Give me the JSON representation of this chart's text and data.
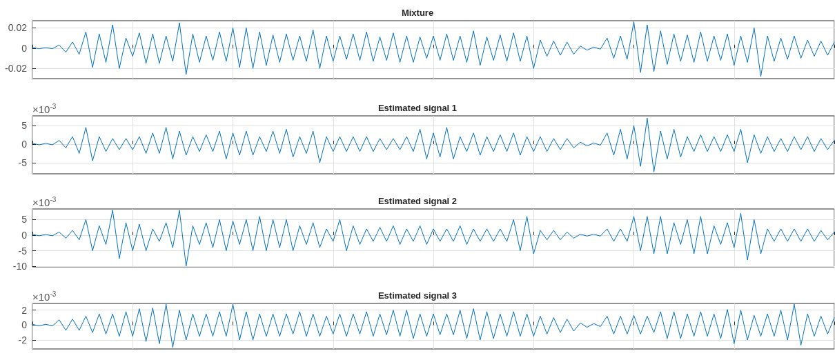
{
  "chart_data": [
    {
      "type": "line",
      "title": "Mixture",
      "categories": [
        null,
        null,
        null,
        null,
        null,
        null,
        null,
        null,
        null,
        null,
        null,
        null,
        null,
        null,
        null,
        null,
        null,
        null,
        null,
        null,
        null,
        null,
        null,
        null,
        null,
        null,
        null,
        null,
        null,
        null,
        null,
        null,
        null,
        null,
        null,
        null,
        null,
        null,
        null,
        null,
        null,
        null,
        null,
        null,
        null,
        null,
        null,
        null,
        null,
        null,
        null,
        null,
        null,
        null,
        null,
        null,
        null,
        null,
        null,
        null,
        null,
        null,
        null,
        null,
        null,
        null,
        null,
        null,
        null,
        null,
        null,
        null,
        null,
        null,
        null,
        null,
        null,
        null,
        null,
        null,
        null,
        null,
        null,
        null,
        null,
        null,
        null,
        null,
        null,
        null,
        null,
        null,
        null,
        null,
        null,
        null,
        null,
        null,
        null,
        null,
        null,
        null,
        null,
        null,
        null,
        null,
        null,
        null,
        null,
        null,
        null,
        null,
        null,
        null,
        null,
        null,
        null,
        null,
        null,
        null,
        null
      ],
      "series": [
        {
          "color": "#0072bd",
          "values": [
            0.0005,
            -0.0005,
            0.0005,
            -0.0005,
            0.003,
            -0.004,
            0.006,
            -0.006,
            0.016,
            -0.019,
            0.014,
            -0.014,
            0.023,
            -0.02,
            0.01,
            -0.008,
            0.015,
            -0.015,
            0.014,
            -0.015,
            0.012,
            -0.013,
            0.025,
            -0.026,
            0.014,
            -0.014,
            0.012,
            -0.012,
            0.016,
            -0.013,
            0.02,
            -0.019,
            0.02,
            -0.02,
            0.016,
            -0.017,
            0.013,
            -0.014,
            0.014,
            -0.012,
            0.012,
            -0.013,
            0.018,
            -0.02,
            0.012,
            -0.013,
            0.012,
            -0.011,
            0.014,
            -0.012,
            0.016,
            -0.013,
            0.011,
            -0.012,
            0.015,
            -0.014,
            0.012,
            -0.014,
            0.011,
            -0.01,
            0.012,
            -0.012,
            0.014,
            -0.012,
            0.012,
            -0.014,
            0.017,
            -0.017,
            0.011,
            -0.012,
            0.013,
            -0.013,
            0.015,
            -0.013,
            0.012,
            -0.02,
            0.008,
            -0.008,
            0.007,
            -0.007,
            0.006,
            -0.006,
            0.002,
            -0.002,
            0.001,
            -0.001,
            0.01,
            -0.01,
            0.012,
            -0.011,
            0.026,
            -0.024,
            0.023,
            -0.023,
            0.017,
            -0.016,
            0.014,
            -0.013,
            0.013,
            -0.014,
            0.016,
            -0.013,
            0.012,
            -0.012,
            0.014,
            -0.017,
            0.012,
            -0.014,
            0.02,
            -0.028,
            0.012,
            -0.013,
            0.01,
            -0.011,
            0.012,
            -0.01,
            0.008,
            -0.008,
            0.007,
            -0.007,
            0.006
          ]
        }
      ],
      "ylim": [
        -0.03,
        0.027
      ],
      "yticks": [
        -0.02,
        0,
        0.02
      ],
      "grid": true,
      "tick_labels": "y"
    },
    {
      "type": "line",
      "title": "Estimated signal 1",
      "annotations": [
        "×10$^{-3}$"
      ],
      "categories": [
        null,
        null,
        null,
        null,
        null,
        null,
        null,
        null,
        null,
        null,
        null,
        null,
        null,
        null,
        null,
        null,
        null,
        null,
        null,
        null,
        null,
        null,
        null,
        null,
        null,
        null,
        null,
        null,
        null,
        null,
        null,
        null,
        null,
        null,
        null,
        null,
        null,
        null,
        null,
        null,
        null,
        null,
        null,
        null,
        null,
        null,
        null,
        null,
        null,
        null,
        null,
        null,
        null,
        null,
        null,
        null,
        null,
        null,
        null,
        null,
        null,
        null,
        null,
        null,
        null,
        null,
        null,
        null,
        null,
        null,
        null,
        null,
        null,
        null,
        null,
        null,
        null,
        null,
        null,
        null,
        null,
        null,
        null,
        null,
        null,
        null,
        null,
        null,
        null,
        null,
        null,
        null,
        null,
        null,
        null,
        null,
        null,
        null,
        null,
        null,
        null,
        null,
        null,
        null,
        null,
        null,
        null,
        null,
        null,
        null,
        null,
        null,
        null,
        null,
        null,
        null,
        null,
        null,
        null,
        null,
        null
      ],
      "series": [
        {
          "color": "#0072bd",
          "values": [
            0.2,
            -0.2,
            0.2,
            -0.2,
            1,
            -1,
            2,
            -2.5,
            4.5,
            -4.5,
            2,
            -2,
            1.5,
            -1.5,
            1.5,
            -1.5,
            2,
            -2.5,
            3,
            -2.5,
            4.5,
            -4,
            3.5,
            -3,
            2,
            -2,
            2.5,
            -2,
            3.5,
            -4,
            3,
            -3,
            3.5,
            -3,
            2,
            -2,
            3.5,
            -2.5,
            4,
            -3.5,
            2,
            -2.5,
            3.5,
            -5,
            2,
            -2,
            2,
            -2,
            2,
            -2,
            2,
            -2,
            1.5,
            -1.5,
            1.5,
            -1.5,
            2,
            -2,
            4,
            -4,
            3,
            -3.5,
            4.5,
            -4,
            2,
            -2,
            3,
            -3,
            2,
            -2,
            2.5,
            -2,
            3,
            -3,
            2,
            -2,
            2,
            -2,
            1.5,
            -1.5,
            1.5,
            -1,
            0.5,
            -0.5,
            0.3,
            -0.3,
            3,
            -3,
            4,
            -4,
            5,
            -6,
            7,
            -7.5,
            3.5,
            -4,
            4,
            -3.5,
            2,
            -2,
            2.5,
            -2,
            2,
            -2,
            2.5,
            -2,
            4,
            -5,
            2.5,
            -2.5,
            2,
            -2,
            1.5,
            -2,
            2,
            -1.5,
            2,
            -2,
            1.5,
            -1.5,
            1
          ]
        }
      ],
      "ylim": [
        -8,
        7.6
      ],
      "yticks": [
        -5,
        0,
        5
      ],
      "grid": true,
      "tick_labels": "y"
    },
    {
      "type": "line",
      "title": "Estimated signal 2",
      "annotations": [
        "×10$^{-3}$"
      ],
      "categories": [
        null,
        null,
        null,
        null,
        null,
        null,
        null,
        null,
        null,
        null,
        null,
        null,
        null,
        null,
        null,
        null,
        null,
        null,
        null,
        null,
        null,
        null,
        null,
        null,
        null,
        null,
        null,
        null,
        null,
        null,
        null,
        null,
        null,
        null,
        null,
        null,
        null,
        null,
        null,
        null,
        null,
        null,
        null,
        null,
        null,
        null,
        null,
        null,
        null,
        null,
        null,
        null,
        null,
        null,
        null,
        null,
        null,
        null,
        null,
        null,
        null,
        null,
        null,
        null,
        null,
        null,
        null,
        null,
        null,
        null,
        null,
        null,
        null,
        null,
        null,
        null,
        null,
        null,
        null,
        null,
        null,
        null,
        null,
        null,
        null,
        null,
        null,
        null,
        null,
        null,
        null,
        null,
        null,
        null,
        null,
        null,
        null,
        null,
        null,
        null,
        null,
        null,
        null,
        null,
        null,
        null,
        null,
        null,
        null,
        null,
        null,
        null,
        null,
        null,
        null,
        null,
        null,
        null,
        null,
        null,
        null
      ],
      "series": [
        {
          "color": "#0072bd",
          "values": [
            0.2,
            -0.2,
            0.2,
            -0.2,
            1,
            -1,
            1.5,
            -1.5,
            5,
            -5,
            3,
            -3,
            8,
            -7.5,
            4,
            -5,
            3.5,
            -5,
            2,
            -2,
            4,
            -4,
            8,
            -10,
            3,
            -3,
            4,
            -4,
            5,
            -5,
            4.5,
            -3,
            5,
            -5,
            6,
            -5,
            5,
            -4,
            5,
            -5,
            3,
            -3,
            4,
            -4,
            2,
            -2,
            5,
            -5,
            3,
            -3,
            2,
            -2,
            2.5,
            -2,
            3,
            -3,
            2,
            -2,
            3,
            -3,
            2,
            -2,
            2,
            -2,
            3,
            -3,
            2,
            -2,
            2,
            -2,
            2,
            -2,
            5,
            -5,
            6,
            -6,
            1.5,
            -1.5,
            1.5,
            -1.5,
            1,
            -1,
            0.3,
            -0.3,
            0.3,
            -0.3,
            2,
            -2,
            2,
            -2,
            6,
            -5,
            6,
            -6,
            6,
            -6,
            4,
            -3,
            5,
            -6,
            6,
            -6,
            3,
            -3,
            4,
            -4,
            7,
            -8,
            5,
            -6,
            2,
            -2,
            2,
            -2,
            2,
            -2,
            2,
            -2,
            1.5,
            -1.5,
            1
          ]
        }
      ],
      "ylim": [
        -10.2,
        8.4
      ],
      "yticks": [
        -10,
        -5,
        0,
        5
      ],
      "grid": true,
      "tick_labels": "y"
    },
    {
      "type": "line",
      "title": "Estimated signal 3",
      "annotations": [
        "×10$^{-3}$"
      ],
      "categories": [
        null,
        null,
        null,
        null,
        null,
        null,
        null,
        null,
        null,
        null,
        null,
        null,
        null,
        null,
        null,
        null,
        null,
        null,
        null,
        null,
        null,
        null,
        null,
        null,
        null,
        null,
        null,
        null,
        null,
        null,
        null,
        null,
        null,
        null,
        null,
        null,
        null,
        null,
        null,
        null,
        null,
        null,
        null,
        null,
        null,
        null,
        null,
        null,
        null,
        null,
        null,
        null,
        null,
        null,
        null,
        null,
        null,
        null,
        null,
        null,
        null,
        null,
        null,
        null,
        null,
        null,
        null,
        null,
        null,
        null,
        null,
        null,
        null,
        null,
        null,
        null,
        null,
        null,
        null,
        null,
        null,
        null,
        null,
        null,
        null,
        null,
        null,
        null,
        null,
        null,
        null,
        null,
        null,
        null,
        null,
        null,
        null,
        null,
        null,
        null,
        null,
        null,
        null,
        null,
        null,
        null,
        null,
        null,
        null,
        null,
        null,
        null,
        null,
        null,
        null,
        null,
        null,
        null,
        null,
        null,
        null
      ],
      "series": [
        {
          "color": "#0072bd",
          "values": [
            0.1,
            -0.1,
            0.1,
            -0.1,
            0.7,
            -0.7,
            0.8,
            -0.7,
            1.2,
            -1,
            1.5,
            -1.2,
            1.5,
            -1.5,
            1.8,
            -1.5,
            2.2,
            -2.2,
            2.3,
            -2.5,
            2.8,
            -3,
            2,
            -2,
            1.5,
            -1.5,
            1.5,
            -1.5,
            1.8,
            -1.5,
            2.8,
            -2,
            1.8,
            -2,
            1.5,
            -1.5,
            1.5,
            -1.5,
            1.5,
            -1.2,
            1.8,
            -1.5,
            1.5,
            -1.5,
            1.2,
            -1.2,
            1.5,
            -1.5,
            1.5,
            -1.2,
            1.8,
            -1.5,
            1.5,
            -1.3,
            2,
            -1.5,
            2,
            -1.8,
            1.5,
            -1.5,
            1.5,
            -1.3,
            1.5,
            -1.3,
            2,
            -1.8,
            2.2,
            -2,
            1.8,
            -1.8,
            1.5,
            -1.5,
            1.8,
            -1.5,
            1.5,
            -1.5,
            1.2,
            -1.2,
            1,
            -1,
            0.8,
            -0.8,
            0.3,
            -0.3,
            0.2,
            -0.2,
            1.2,
            -1.2,
            1.2,
            -1.2,
            1.3,
            -1.2,
            1.2,
            -1,
            1.8,
            -1.8,
            1.8,
            -1.8,
            1.5,
            -1.5,
            1.8,
            -1.5,
            1.5,
            -1.8,
            2.1,
            -2.5,
            2,
            -2,
            1.3,
            -1.5,
            1.5,
            -1.5,
            2,
            -2,
            2.8,
            -2.7,
            1.5,
            -1.5,
            1.2,
            -1.2,
            1
          ]
        }
      ],
      "ylim": [
        -3.2,
        2.9
      ],
      "yticks": [
        -2,
        0,
        2
      ],
      "grid": true,
      "tick_labels": "y"
    }
  ]
}
